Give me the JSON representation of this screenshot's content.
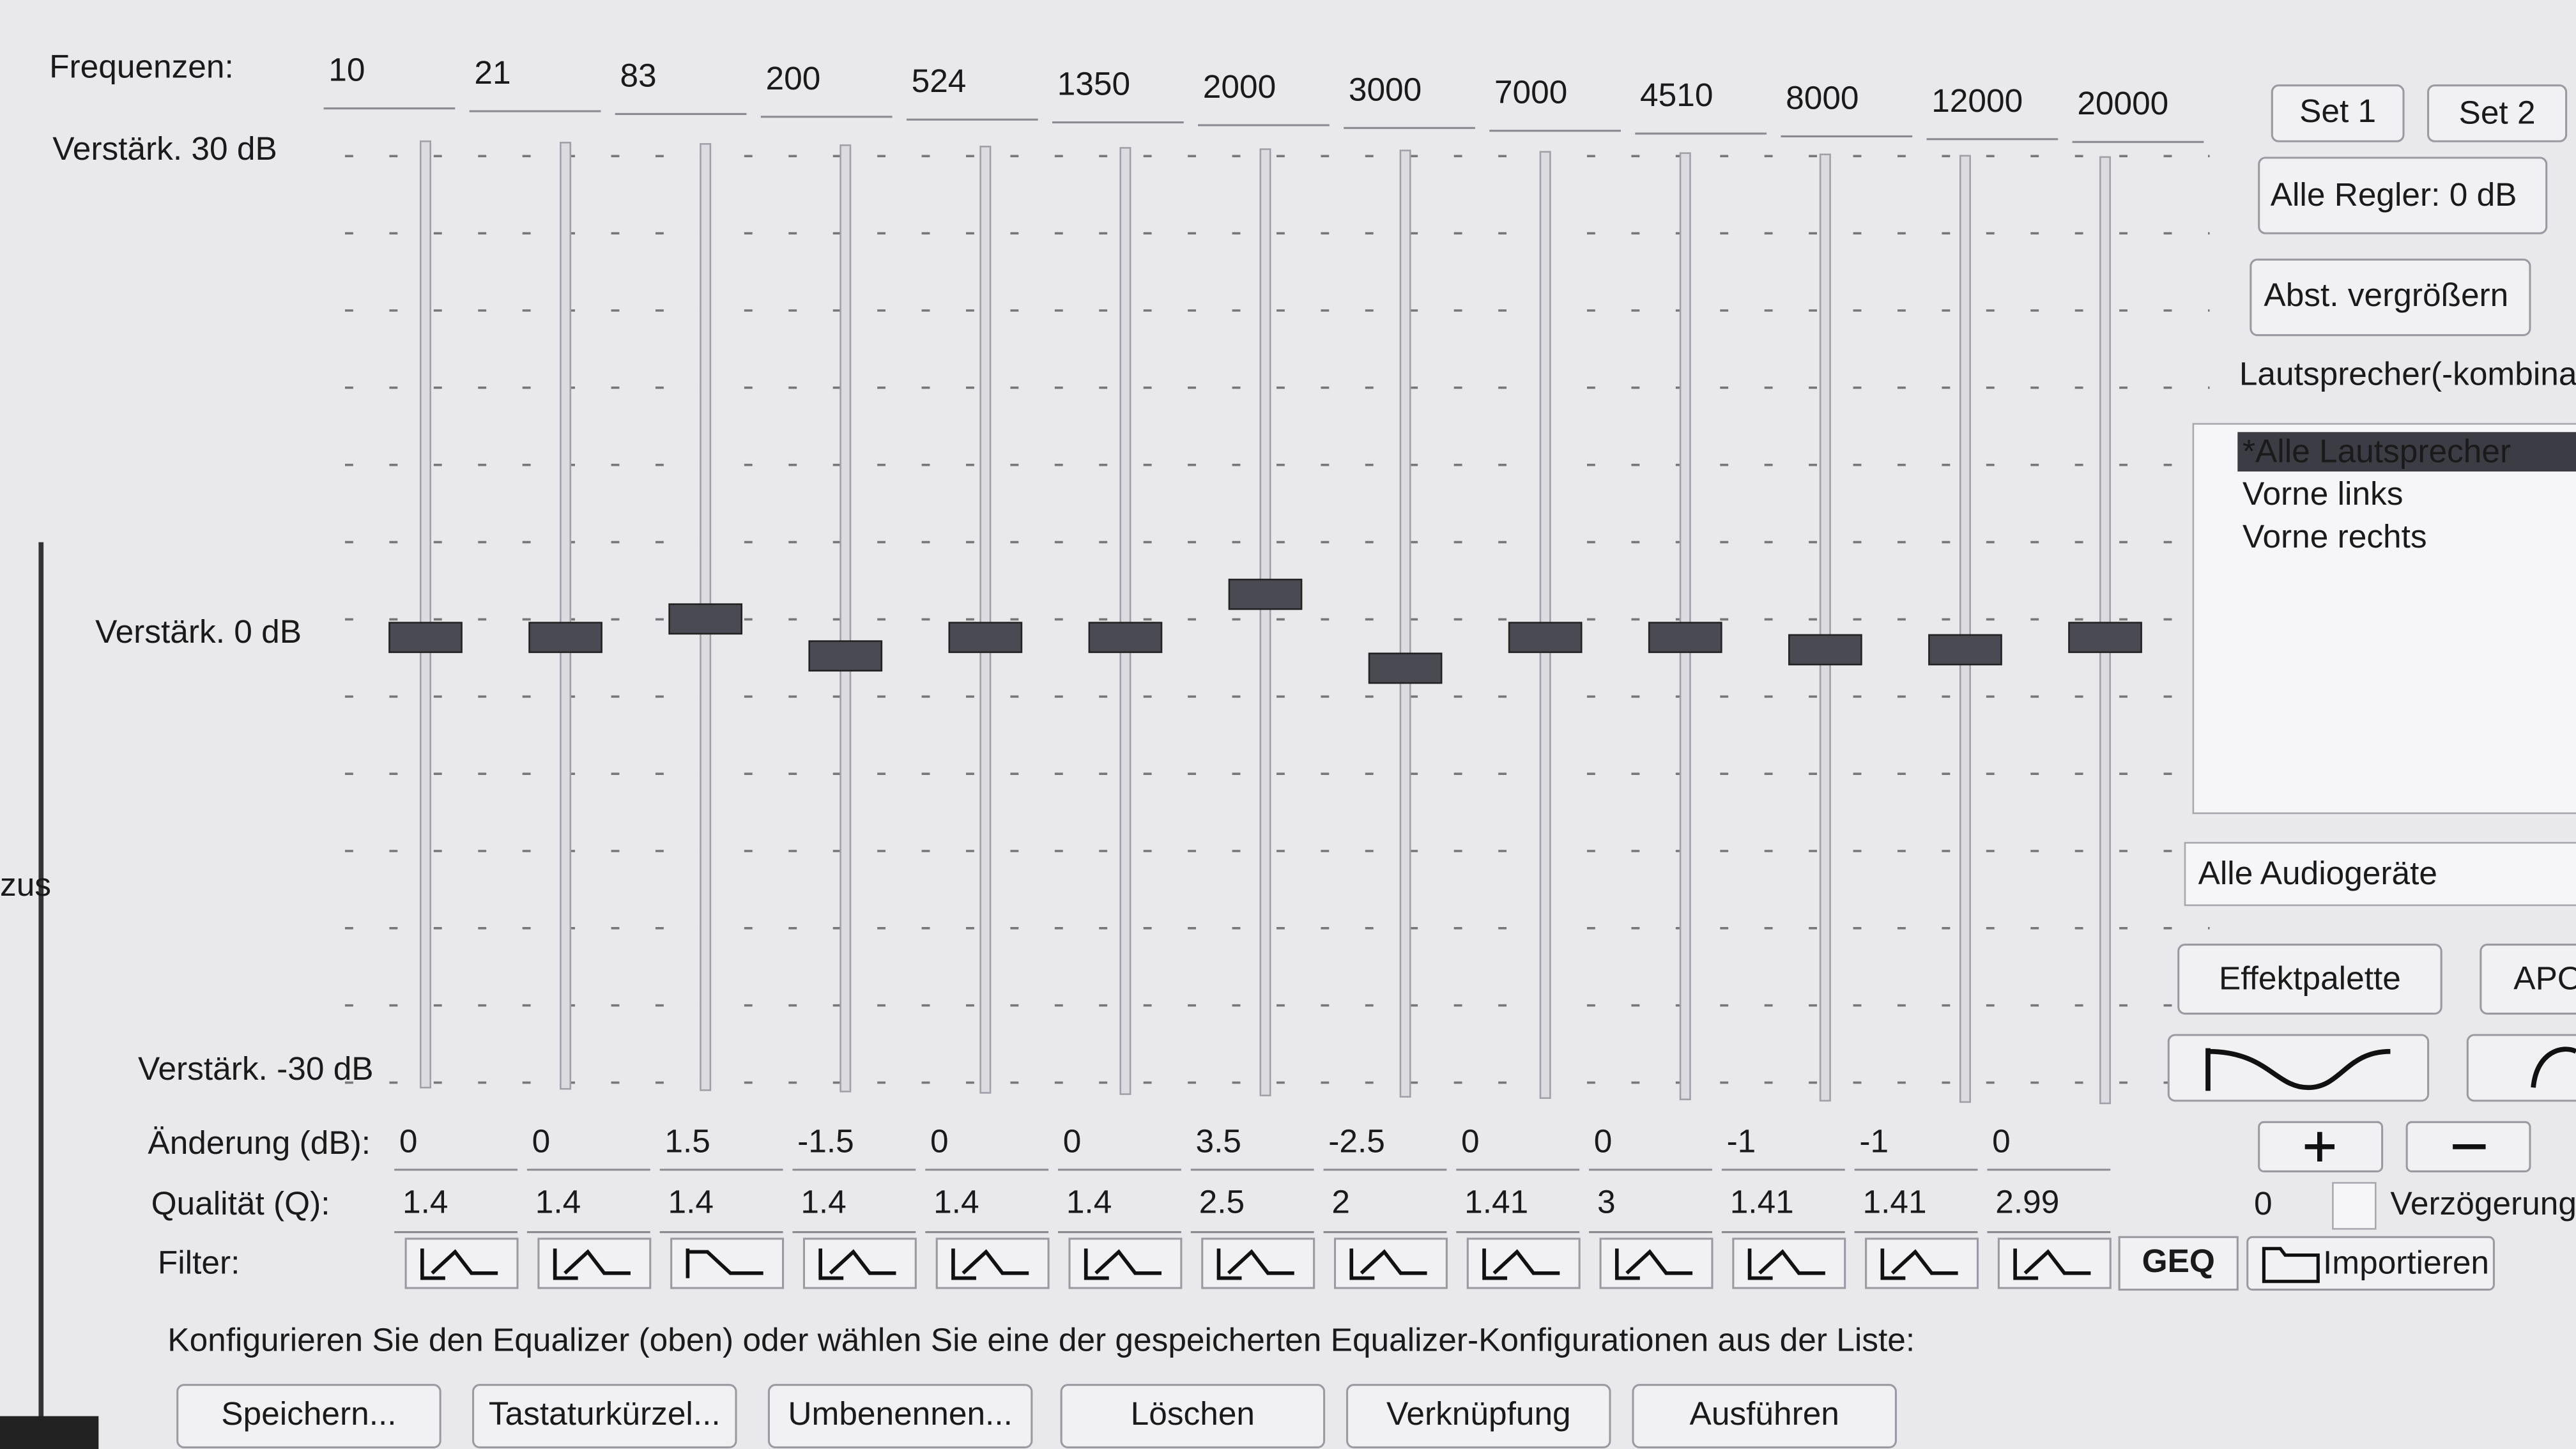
{
  "left_cut": "zus",
  "labels": {
    "frequencies": "Frequenzen:",
    "gain_top": "Verstärk. 30 dB",
    "gain_mid": "Verstärk. 0 dB",
    "gain_bottom": "Verstärk. -30 dB",
    "change": "Änderung (dB):",
    "quality": "Qualität (Q):",
    "filter": "Filter:"
  },
  "bands": [
    {
      "frequency": 10,
      "change": 0,
      "quality": 1.4,
      "filter": "peak"
    },
    {
      "frequency": 21,
      "change": 0,
      "quality": 1.4,
      "filter": "peak"
    },
    {
      "frequency": 83,
      "change": 1.5,
      "quality": 1.4,
      "filter": "low_shelf"
    },
    {
      "frequency": 200,
      "change": -1.5,
      "quality": 1.4,
      "filter": "peak"
    },
    {
      "frequency": 524,
      "change": 0,
      "quality": 1.4,
      "filter": "peak"
    },
    {
      "frequency": 1350,
      "change": 0,
      "quality": 1.4,
      "filter": "peak"
    },
    {
      "frequency": 2000,
      "change": 3.5,
      "quality": 2.5,
      "filter": "peak"
    },
    {
      "frequency": 3000,
      "change": -2.5,
      "quality": 2,
      "filter": "peak"
    },
    {
      "frequency": 7000,
      "change": 0,
      "quality": 1.41,
      "filter": "peak"
    },
    {
      "frequency": 4510,
      "change": 0,
      "quality": 3,
      "filter": "peak"
    },
    {
      "frequency": 8000,
      "change": -1,
      "quality": 1.41,
      "filter": "peak"
    },
    {
      "frequency": 12000,
      "change": -1,
      "quality": 1.41,
      "filter": "peak"
    },
    {
      "frequency": 20000,
      "change": 0,
      "quality": 2.99,
      "filter": "peak"
    }
  ],
  "geq": "GEQ",
  "side": {
    "set1": "Set 1",
    "set2": "Set 2",
    "reset": "Alle Regler: 0 dB",
    "enlarge": "Abst. vergrößern",
    "speakers_label": "Lautsprecher(-kombina",
    "speakers": [
      "*Alle Lautsprecher",
      "Vorne links",
      "Vorne rechts"
    ],
    "devices": "Alle Audiogeräte",
    "palette": "Effektpalette",
    "apo": "APO",
    "delay_value": 0,
    "delay_label": "Verzögerung",
    "import": "Importieren"
  },
  "instruction": "Konfigurieren Sie den Equalizer (oben) oder wählen Sie eine der gespeicherten Equalizer-Konfigurationen aus der Liste:",
  "buttons": [
    "Speichern...",
    "Tastaturkürzel...",
    "Umbenennen...",
    "Löschen",
    "Verknüpfung",
    "Ausführen"
  ]
}
